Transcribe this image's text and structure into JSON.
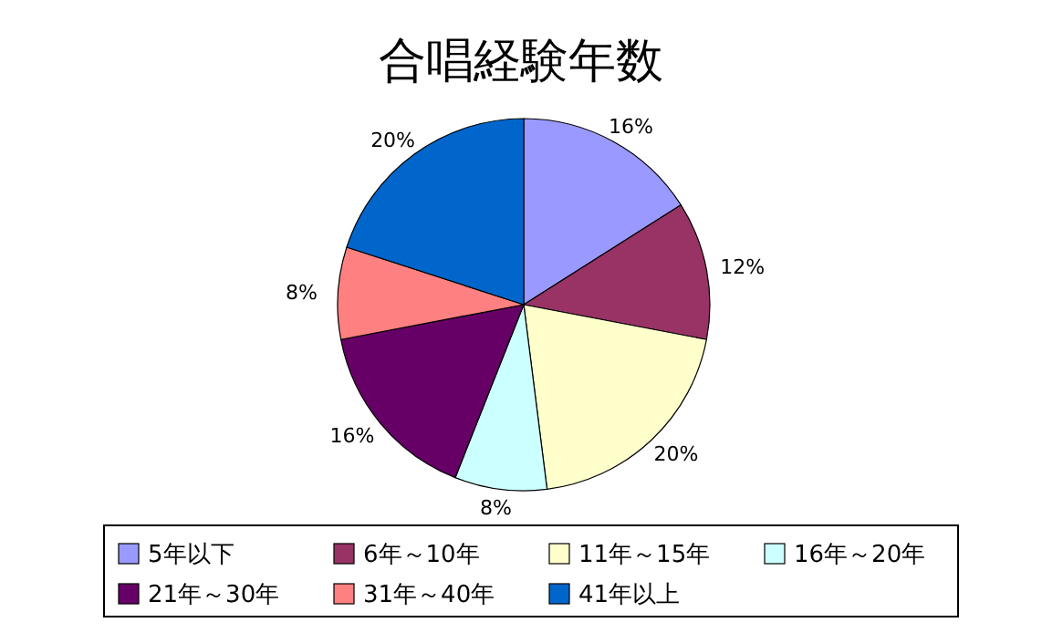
{
  "chart_data": {
    "type": "pie",
    "title": "合唱経験年数",
    "categories": [
      "5年以下",
      "6年～10年",
      "11年～15年",
      "16年～20年",
      "21年～30年",
      "31年～40年",
      "41年以上"
    ],
    "values": [
      16,
      12,
      20,
      8,
      16,
      8,
      20
    ],
    "value_labels": [
      "16%",
      "12%",
      "20%",
      "8%",
      "16%",
      "8%",
      "20%"
    ],
    "colors": [
      "#9999ff",
      "#993366",
      "#ffffcc",
      "#ccffff",
      "#660066",
      "#ff8080",
      "#0066cc"
    ],
    "legend": "bottom"
  }
}
